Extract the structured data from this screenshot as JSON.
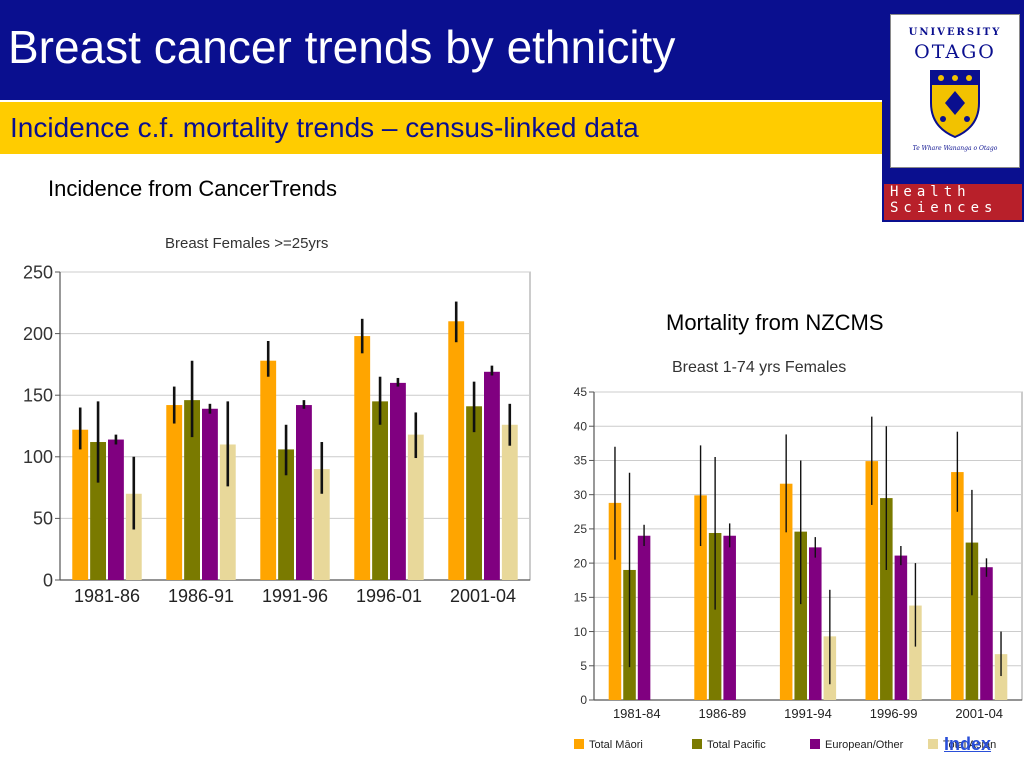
{
  "slide": {
    "title": "Breast cancer trends by ethnicity",
    "subtitle": "Incidence c.f. mortality trends – census-linked data",
    "incidence_caption": "Incidence from CancerTrends",
    "mortality_caption": "Mortality from NZCMS",
    "index_link": "Index"
  },
  "logo": {
    "line1": "UNIVERSITY",
    "line2": "OTAGO",
    "motto": "Te Whare Wananga o Otago",
    "health_line1": "Health",
    "health_line2": "Sciences"
  },
  "colors": {
    "title_bg": "#0a0f8f",
    "subtitle_bg": "#ffcc00",
    "maori": "#ffa500",
    "pacific": "#7a7a00",
    "european": "#800080",
    "asian": "#e8d89a"
  },
  "chart_data": [
    {
      "type": "bar",
      "title": "Breast   Females   >=25yrs",
      "categories": [
        "1981-86",
        "1986-91",
        "1991-96",
        "1996-01",
        "2001-04"
      ],
      "ylim": [
        0,
        250
      ],
      "yticks": [
        0,
        50,
        100,
        150,
        200,
        250
      ],
      "grid": true,
      "error_bars": true,
      "series": [
        {
          "values": [
            122,
            142,
            178,
            198,
            210
          ],
          "err_low": [
            106,
            127,
            165,
            184,
            193
          ],
          "err_high": [
            140,
            157,
            194,
            212,
            226
          ]
        },
        {
          "values": [
            112,
            146,
            106,
            145,
            141
          ],
          "err_low": [
            79,
            116,
            85,
            126,
            120
          ],
          "err_high": [
            145,
            178,
            126,
            165,
            161
          ]
        },
        {
          "values": [
            114,
            139,
            142,
            160,
            169
          ],
          "err_low": [
            110,
            135,
            139,
            157,
            166
          ],
          "err_high": [
            118,
            143,
            146,
            164,
            174
          ]
        },
        {
          "values": [
            70,
            110,
            90,
            118,
            126
          ],
          "err_low": [
            41,
            76,
            70,
            99,
            109
          ],
          "err_high": [
            100,
            145,
            112,
            136,
            143
          ]
        }
      ]
    },
    {
      "type": "bar",
      "title": "Breast   1-74 yrs   Females",
      "categories": [
        "1981-84",
        "1986-89",
        "1991-94",
        "1996-99",
        "2001-04"
      ],
      "ylim": [
        0,
        45
      ],
      "yticks": [
        0,
        5,
        10,
        15,
        20,
        25,
        30,
        35,
        40,
        45
      ],
      "grid": true,
      "error_bars": true,
      "legend_position": "bottom",
      "series": [
        {
          "name": "Total Māori",
          "values": [
            28.8,
            29.9,
            31.6,
            34.9,
            33.3
          ],
          "err_low": [
            20.5,
            22.5,
            24.5,
            28.5,
            27.5
          ],
          "err_high": [
            37.0,
            37.2,
            38.8,
            41.4,
            39.2
          ]
        },
        {
          "name": "Total Pacific",
          "values": [
            19.0,
            24.4,
            24.6,
            29.5,
            23.0
          ],
          "err_low": [
            4.8,
            13.2,
            14.0,
            19.0,
            15.3
          ],
          "err_high": [
            33.2,
            35.5,
            35.0,
            40.0,
            30.7
          ]
        },
        {
          "name": "European/Other",
          "values": [
            24.0,
            24.0,
            22.3,
            21.1,
            19.4
          ],
          "err_low": [
            22.5,
            22.3,
            20.8,
            19.7,
            18.0
          ],
          "err_high": [
            25.6,
            25.8,
            23.8,
            22.5,
            20.7
          ]
        },
        {
          "name": "Total Asian",
          "values": [
            null,
            null,
            9.3,
            13.8,
            6.7
          ],
          "err_low": [
            null,
            null,
            2.3,
            7.8,
            3.5
          ],
          "err_high": [
            null,
            null,
            16.1,
            20.0,
            10.0
          ]
        }
      ]
    }
  ]
}
